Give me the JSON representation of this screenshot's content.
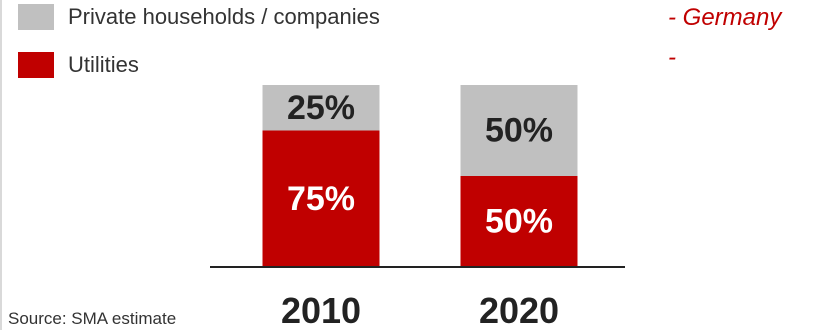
{
  "colors": {
    "households": "#c0c0c0",
    "utilities": "#c00000",
    "accent_text": "#c00000",
    "label_dark": "#222222",
    "label_light": "#ffffff"
  },
  "legend": [
    {
      "label": "Private households / companies",
      "color": "#c0c0c0"
    },
    {
      "label": "Utilities",
      "color": "#c00000"
    }
  ],
  "notes": [
    "- Germany",
    "-"
  ],
  "source": "Source: SMA estimate",
  "chart_data": {
    "type": "bar",
    "stacked": true,
    "categories": [
      "2010",
      "2020"
    ],
    "series": [
      {
        "name": "Utilities",
        "values": [
          75,
          50
        ],
        "labels": [
          "75%",
          "50%"
        ],
        "color": "#c00000"
      },
      {
        "name": "Private households / companies",
        "values": [
          25,
          50
        ],
        "labels": [
          "25%",
          "50%"
        ],
        "color": "#c0c0c0"
      }
    ],
    "ylim": [
      0,
      100
    ],
    "grid": false,
    "legend": "top-left"
  }
}
